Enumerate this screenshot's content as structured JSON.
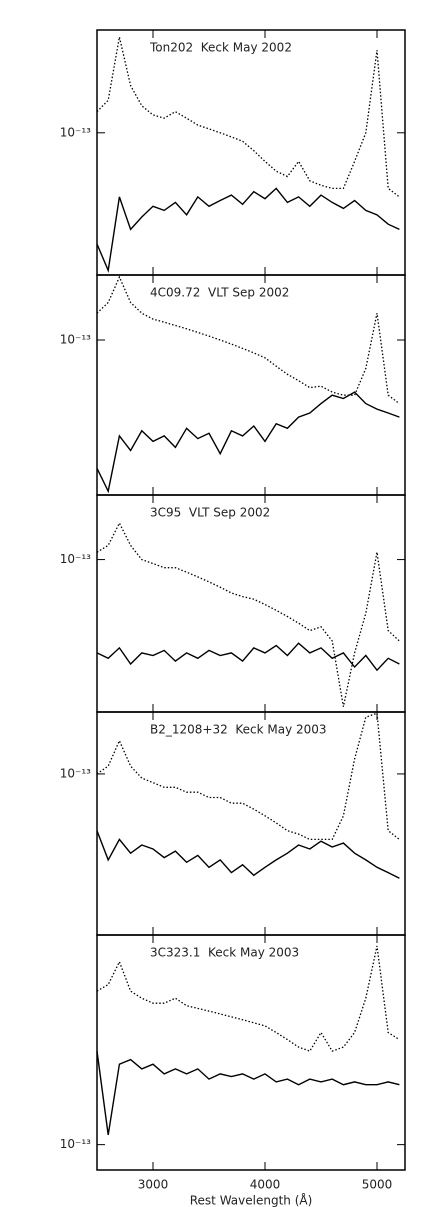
{
  "chart_data": [
    {
      "type": "line",
      "title": "Ton202  Keck May 2002",
      "log_y": true,
      "x": [
        2500,
        2600,
        2700,
        2800,
        2900,
        3000,
        3100,
        3200,
        3300,
        3400,
        3500,
        3600,
        3700,
        3800,
        3900,
        4000,
        4100,
        4200,
        4300,
        4400,
        4500,
        4600,
        4700,
        4800,
        4900,
        5000,
        5100,
        5200
      ],
      "xlim": [
        2500,
        5250
      ],
      "ylim": [
        1.7e-14,
        3.6e-13
      ],
      "yticks": [
        {
          "value": 1e-13,
          "label": "10⁻¹³"
        }
      ],
      "series": [
        {
          "color": "#000000",
          "style": "dotted",
          "values": [
            1.3e-13,
            1.5e-13,
            3.3e-13,
            1.8e-13,
            1.4e-13,
            1.25e-13,
            1.2e-13,
            1.3e-13,
            1.2e-13,
            1.1e-13,
            1.05e-13,
            1e-13,
            9.5e-14,
            9e-14,
            8e-14,
            7e-14,
            6.2e-14,
            5.8e-14,
            7e-14,
            5.5e-14,
            5.2e-14,
            5e-14,
            5e-14,
            7e-14,
            1e-13,
            2.8e-13,
            5e-14,
            4.5e-14
          ]
        },
        {
          "color": "#000000",
          "style": "solid",
          "values": [
            2.5e-14,
            1.8e-14,
            4.5e-14,
            3e-14,
            3.5e-14,
            4e-14,
            3.8e-14,
            4.2e-14,
            3.6e-14,
            4.5e-14,
            4e-14,
            4.3e-14,
            4.6e-14,
            4.1e-14,
            4.8e-14,
            4.4e-14,
            5e-14,
            4.2e-14,
            4.5e-14,
            4e-14,
            4.6e-14,
            4.2e-14,
            3.9e-14,
            4.3e-14,
            3.8e-14,
            3.6e-14,
            3.2e-14,
            3e-14
          ]
        }
      ]
    },
    {
      "type": "line",
      "title": "4C09.72  VLT Sep 2002",
      "log_y": true,
      "x": [
        2500,
        2600,
        2700,
        2800,
        2900,
        3000,
        3100,
        3200,
        3300,
        3400,
        3500,
        3600,
        3700,
        3800,
        3900,
        4000,
        4100,
        4200,
        4300,
        4400,
        4500,
        4600,
        4700,
        4800,
        4900,
        5000,
        5100,
        5200
      ],
      "xlim": [
        2500,
        5250
      ],
      "ylim": [
        1.43e-14,
        2.26e-13
      ],
      "yticks": [
        {
          "value": 1e-13,
          "label": "10⁻¹³"
        }
      ],
      "series": [
        {
          "color": "#000000",
          "style": "dotted",
          "values": [
            1.4e-13,
            1.6e-13,
            2.2e-13,
            1.6e-13,
            1.4e-13,
            1.3e-13,
            1.25e-13,
            1.2e-13,
            1.15e-13,
            1.1e-13,
            1.05e-13,
            1e-13,
            9.5e-14,
            9e-14,
            8.5e-14,
            8e-14,
            7.2e-14,
            6.5e-14,
            6e-14,
            5.5e-14,
            5.6e-14,
            5.2e-14,
            5e-14,
            5e-14,
            7e-14,
            1.4e-13,
            5e-14,
            4.5e-14
          ]
        },
        {
          "color": "#000000",
          "style": "solid",
          "values": [
            2e-14,
            1.5e-14,
            3e-14,
            2.5e-14,
            3.2e-14,
            2.8e-14,
            3e-14,
            2.6e-14,
            3.3e-14,
            2.9e-14,
            3.1e-14,
            2.4e-14,
            3.2e-14,
            3e-14,
            3.4e-14,
            2.8e-14,
            3.5e-14,
            3.3e-14,
            3.8e-14,
            4e-14,
            4.5e-14,
            5e-14,
            4.8e-14,
            5.2e-14,
            4.5e-14,
            4.2e-14,
            4e-14,
            3.8e-14
          ]
        }
      ]
    },
    {
      "type": "line",
      "title": "3C95  VLT Sep 2002",
      "log_y": true,
      "x": [
        2500,
        2600,
        2700,
        2800,
        2900,
        3000,
        3100,
        3200,
        3300,
        3400,
        3500,
        3600,
        3700,
        3800,
        3900,
        4000,
        4100,
        4200,
        4300,
        4400,
        4500,
        4600,
        4700,
        4800,
        4900,
        5000,
        5100,
        5200
      ],
      "xlim": [
        2500,
        5250
      ],
      "ylim": [
        1.4e-14,
        2.3e-13
      ],
      "yticks": [
        {
          "value": 1e-13,
          "label": "10⁻¹³"
        }
      ],
      "series": [
        {
          "color": "#000000",
          "style": "dotted",
          "values": [
            1.1e-13,
            1.2e-13,
            1.6e-13,
            1.2e-13,
            1e-13,
            9.5e-14,
            9e-14,
            9e-14,
            8.5e-14,
            8e-14,
            7.5e-14,
            7e-14,
            6.5e-14,
            6.2e-14,
            6e-14,
            5.6e-14,
            5.2e-14,
            4.8e-14,
            4.4e-14,
            4e-14,
            4.2e-14,
            3.5e-14,
            1.5e-14,
            3e-14,
            5e-14,
            1.1e-13,
            4e-14,
            3.5e-14
          ]
        },
        {
          "color": "#000000",
          "style": "solid",
          "values": [
            3e-14,
            2.8e-14,
            3.2e-14,
            2.6e-14,
            3e-14,
            2.9e-14,
            3.1e-14,
            2.7e-14,
            3e-14,
            2.8e-14,
            3.1e-14,
            2.9e-14,
            3e-14,
            2.7e-14,
            3.2e-14,
            3e-14,
            3.3e-14,
            2.9e-14,
            3.4e-14,
            3e-14,
            3.2e-14,
            2.8e-14,
            3e-14,
            2.5e-14,
            2.9e-14,
            2.4e-14,
            2.8e-14,
            2.6e-14
          ]
        }
      ]
    },
    {
      "type": "line",
      "title": "B2_1208+32  Keck May 2003",
      "log_y": true,
      "x": [
        2500,
        2600,
        2700,
        2800,
        2900,
        3000,
        3100,
        3200,
        3300,
        3400,
        3500,
        3600,
        3700,
        3800,
        3900,
        4000,
        4100,
        4200,
        4300,
        4400,
        4500,
        4600,
        4700,
        4800,
        4900,
        5000,
        5100,
        5200
      ],
      "xlim": [
        2500,
        5250
      ],
      "ylim": [
        1.4e-14,
        2.13e-13
      ],
      "yticks": [
        {
          "value": 1e-13,
          "label": "10⁻¹³"
        }
      ],
      "series": [
        {
          "color": "#000000",
          "style": "dotted",
          "values": [
            1e-13,
            1.1e-13,
            1.5e-13,
            1.1e-13,
            9.5e-14,
            9e-14,
            8.5e-14,
            8.5e-14,
            8e-14,
            8e-14,
            7.5e-14,
            7.5e-14,
            7e-14,
            7e-14,
            6.5e-14,
            6e-14,
            5.5e-14,
            5e-14,
            4.8e-14,
            4.5e-14,
            4.5e-14,
            4.5e-14,
            6e-14,
            1.2e-13,
            2e-13,
            2.1e-13,
            5e-14,
            4.5e-14
          ]
        },
        {
          "color": "#000000",
          "style": "solid",
          "values": [
            5e-14,
            3.5e-14,
            4.5e-14,
            3.8e-14,
            4.2e-14,
            4e-14,
            3.6e-14,
            3.9e-14,
            3.4e-14,
            3.7e-14,
            3.2e-14,
            3.5e-14,
            3e-14,
            3.3e-14,
            2.9e-14,
            3.2e-14,
            3.5e-14,
            3.8e-14,
            4.2e-14,
            4e-14,
            4.4e-14,
            4.1e-14,
            4.3e-14,
            3.8e-14,
            3.5e-14,
            3.2e-14,
            3e-14,
            2.8e-14
          ]
        }
      ]
    },
    {
      "type": "line",
      "title": "3C323.1  Keck May 2003",
      "log_y": true,
      "xlabel": "Rest Wavelength (Å)",
      "x": [
        2500,
        2600,
        2700,
        2800,
        2900,
        3000,
        3100,
        3200,
        3300,
        3400,
        3500,
        3600,
        3700,
        3800,
        3900,
        4000,
        4100,
        4200,
        4300,
        4400,
        4500,
        4600,
        4700,
        4800,
        4900,
        5000,
        5100,
        5200
      ],
      "xlim": [
        2500,
        5250
      ],
      "xticks": [
        3000,
        4000,
        5000
      ],
      "ylim": [
        7.8e-14,
        7.8e-13
      ],
      "yticks": [
        {
          "value": 1e-13,
          "label": "10⁻¹³"
        }
      ],
      "series": [
        {
          "color": "#000000",
          "style": "dotted",
          "values": [
            4.5e-13,
            4.8e-13,
            6e-13,
            4.5e-13,
            4.2e-13,
            4e-13,
            4e-13,
            4.2e-13,
            3.9e-13,
            3.8e-13,
            3.7e-13,
            3.6e-13,
            3.5e-13,
            3.4e-13,
            3.3e-13,
            3.2e-13,
            3e-13,
            2.8e-13,
            2.6e-13,
            2.5e-13,
            3e-13,
            2.5e-13,
            2.6e-13,
            3e-13,
            4.2e-13,
            7e-13,
            3e-13,
            2.8e-13
          ]
        },
        {
          "color": "#000000",
          "style": "solid",
          "values": [
            2.5e-13,
            1.1e-13,
            2.2e-13,
            2.3e-13,
            2.1e-13,
            2.2e-13,
            2e-13,
            2.1e-13,
            2e-13,
            2.1e-13,
            1.9e-13,
            2e-13,
            1.95e-13,
            2e-13,
            1.9e-13,
            2e-13,
            1.85e-13,
            1.9e-13,
            1.8e-13,
            1.9e-13,
            1.85e-13,
            1.9e-13,
            1.8e-13,
            1.85e-13,
            1.8e-13,
            1.8e-13,
            1.85e-13,
            1.8e-13
          ]
        }
      ]
    }
  ]
}
